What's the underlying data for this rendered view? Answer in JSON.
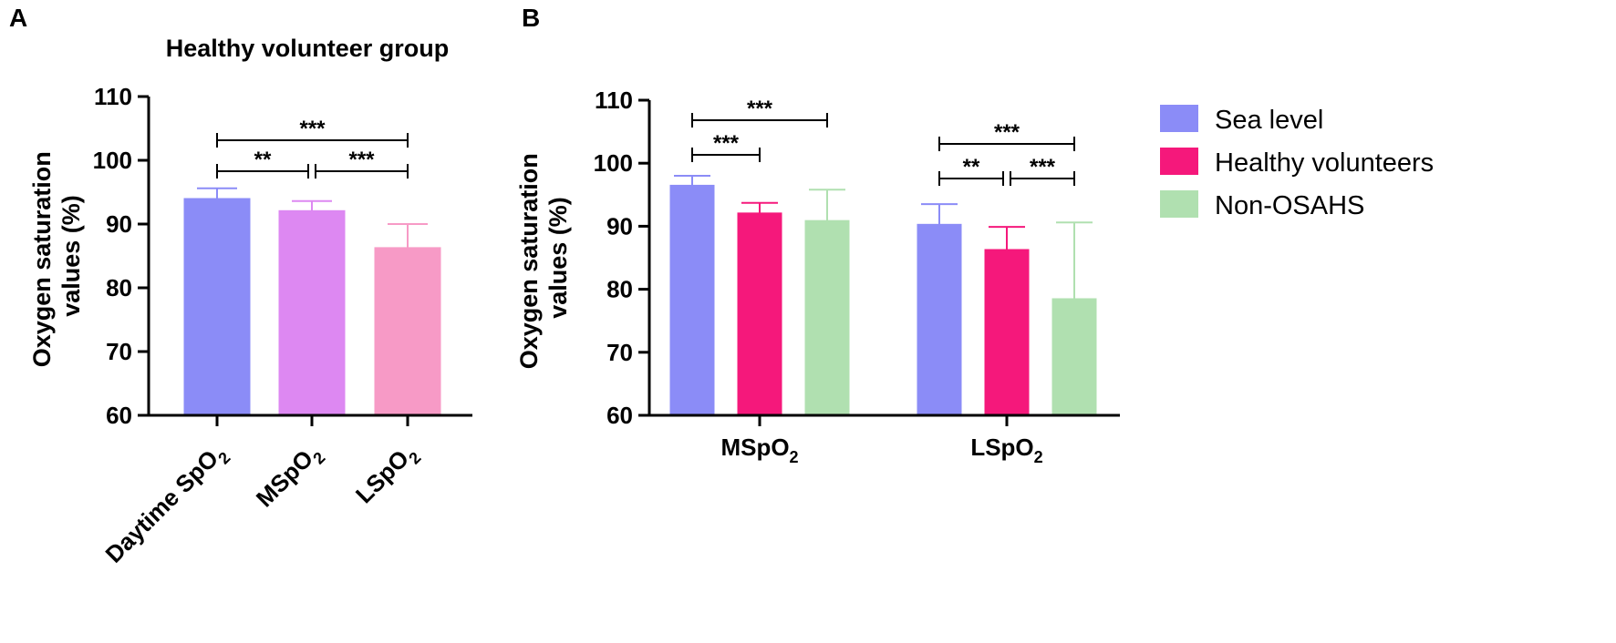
{
  "chart_data": [
    {
      "panel": "A",
      "type": "bar",
      "title": "Healthy volunteer group",
      "ylabel_line1": "Oxygen saturation",
      "ylabel_line2": "values (%)",
      "ylim": [
        60,
        110
      ],
      "yticks": [
        60,
        70,
        80,
        90,
        100,
        110
      ],
      "categories": [
        {
          "base": "Daytime SpO",
          "sub": "2"
        },
        {
          "base": "MSpO",
          "sub": "2"
        },
        {
          "base": "LSpO",
          "sub": "2"
        }
      ],
      "values": [
        94,
        92.1,
        86.3
      ],
      "errors": [
        1.6,
        1.5,
        3.7
      ],
      "colors": [
        "#8b8cf7",
        "#dd88f2",
        "#f79ac6"
      ],
      "significance": [
        {
          "from": 0,
          "to": 2,
          "label": "***",
          "level": 2
        },
        {
          "from": 0,
          "to": 1,
          "label": "**",
          "level": 1
        },
        {
          "from": 1,
          "to": 2,
          "label": "***",
          "level": 1
        }
      ]
    },
    {
      "panel": "B",
      "type": "bar",
      "ylabel_line1": "Oxygen saturation",
      "ylabel_line2": "values (%)",
      "ylim": [
        60,
        110
      ],
      "yticks": [
        60,
        70,
        80,
        90,
        100,
        110
      ],
      "categories": [
        {
          "base": "MSpO",
          "sub": "2"
        },
        {
          "base": "LSpO",
          "sub": "2"
        }
      ],
      "series": [
        {
          "name": "Sea level",
          "color": "#8b8cf7",
          "values": [
            96.5,
            90.3
          ],
          "errors": [
            1.5,
            3.2
          ]
        },
        {
          "name": "Healthy volunteers",
          "color": "#f5187b",
          "values": [
            92.1,
            86.3
          ],
          "errors": [
            1.6,
            3.6
          ]
        },
        {
          "name": "Non-OSAHS",
          "color": "#b0e0b0",
          "values": [
            90.9,
            78.5
          ],
          "errors": [
            4.9,
            12.1
          ]
        }
      ],
      "significance": [
        {
          "group": 0,
          "from": 0,
          "to": 2,
          "label": "***",
          "level": 2
        },
        {
          "group": 0,
          "from": 0,
          "to": 1,
          "label": "***",
          "level": 1
        },
        {
          "group": 1,
          "from": 0,
          "to": 2,
          "label": "***",
          "level": 2
        },
        {
          "group": 1,
          "from": 0,
          "to": 1,
          "label": "**",
          "level": 1
        },
        {
          "group": 1,
          "from": 1,
          "to": 2,
          "label": "***",
          "level": 1
        }
      ]
    }
  ]
}
